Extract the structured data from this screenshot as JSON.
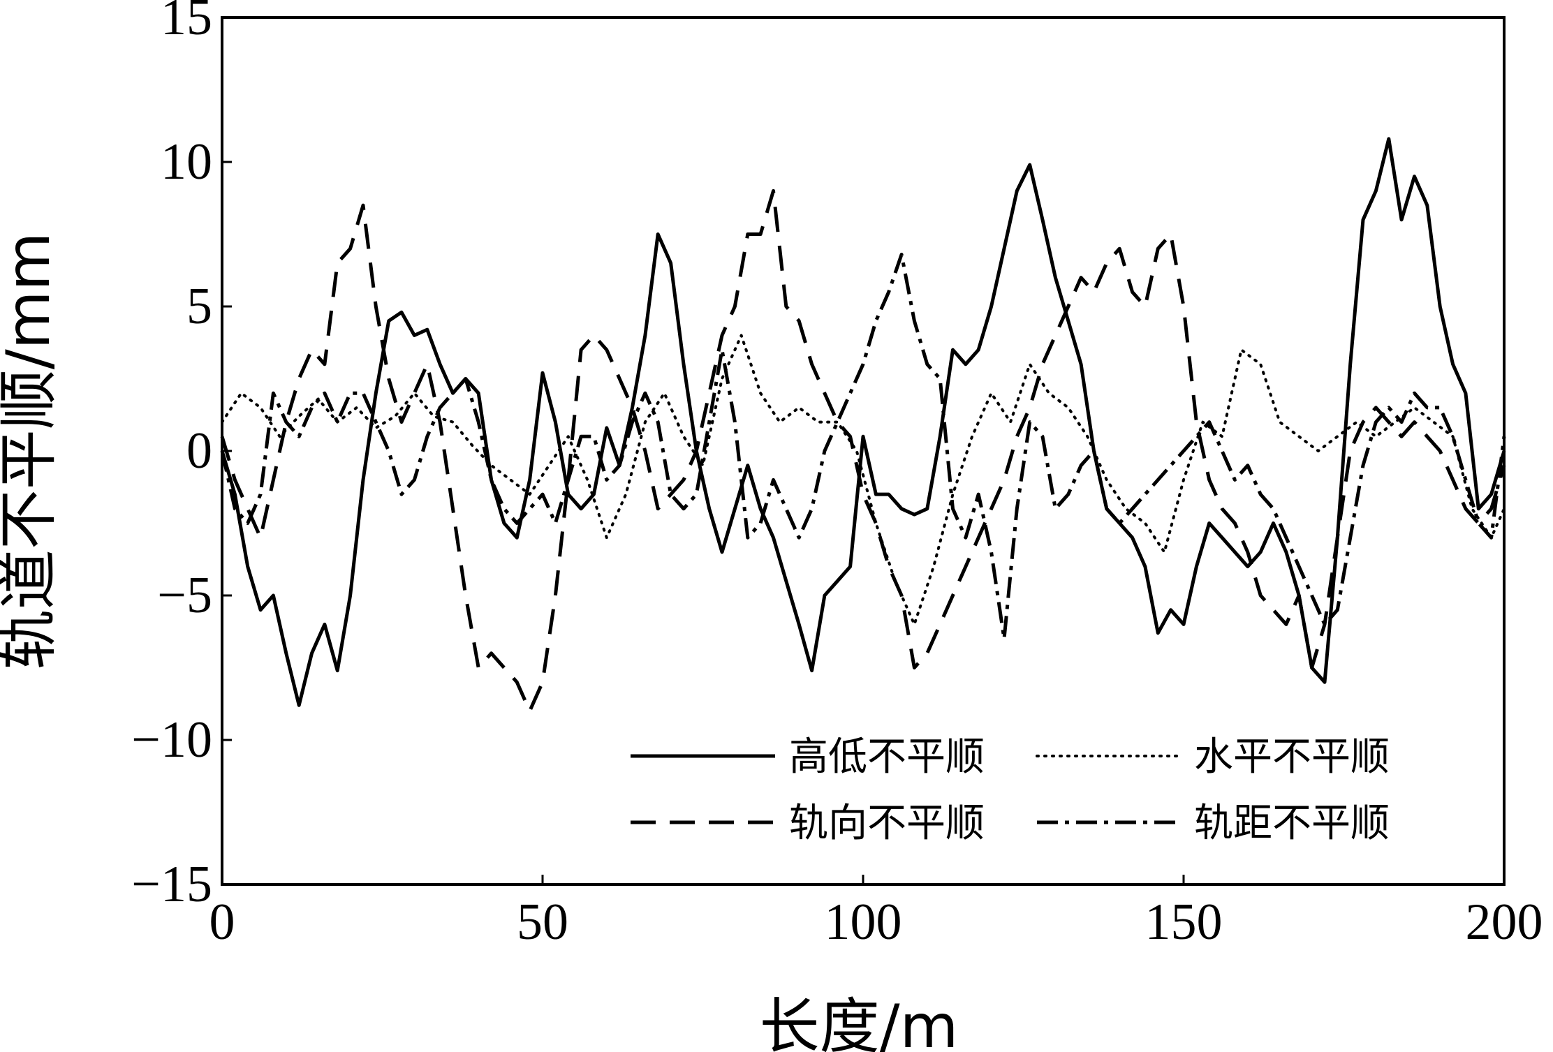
{
  "chart_data": {
    "type": "line",
    "title": "",
    "xlabel": "长度/m",
    "ylabel": "轨道不平顺/mm",
    "xlim": [
      0,
      200
    ],
    "ylim": [
      -15,
      15
    ],
    "xticks": [
      0,
      50,
      100,
      150,
      200
    ],
    "yticks": [
      -15,
      -10,
      -5,
      0,
      5,
      10,
      15
    ],
    "x_tick_labels": [
      "0",
      "50",
      "100",
      "150",
      "200"
    ],
    "y_tick_labels": [
      "−15",
      "−10",
      "−5",
      "0",
      "5",
      "10",
      "15"
    ],
    "grid": false,
    "legend_position": "bottom-right",
    "series": [
      {
        "name": "高低不平顺",
        "style": "solid",
        "x": [
          0,
          2,
          4,
          6,
          8,
          10,
          12,
          14,
          16,
          18,
          20,
          22,
          24,
          26,
          28,
          30,
          32,
          34,
          36,
          38,
          40,
          42,
          44,
          46,
          48,
          50,
          52,
          54,
          56,
          58,
          60,
          62,
          64,
          66,
          68,
          70,
          72,
          74,
          76,
          78,
          80,
          82,
          84,
          86,
          88,
          90,
          92,
          94,
          96,
          98,
          100,
          102,
          104,
          106,
          108,
          110,
          112,
          114,
          116,
          118,
          120,
          122,
          124,
          126,
          128,
          130,
          132,
          134,
          136,
          138,
          140,
          142,
          144,
          146,
          148,
          150,
          152,
          154,
          156,
          158,
          160,
          162,
          164,
          166,
          168,
          170,
          172,
          174,
          176,
          178,
          180,
          182,
          184,
          186,
          188,
          190,
          192,
          194,
          196,
          198,
          200
        ],
        "values": [
          0,
          -1.5,
          -4,
          -5.5,
          -5,
          -7,
          -8.8,
          -7,
          -6,
          -7.6,
          -5,
          -1,
          2,
          4.5,
          4.8,
          4,
          4.2,
          3,
          2,
          2.5,
          2,
          -1,
          -2.5,
          -3,
          -1,
          2.7,
          1,
          -1.5,
          -2,
          -1.5,
          0.8,
          -0.5,
          1.5,
          4,
          7.5,
          6.5,
          3,
          0,
          -2,
          -3.5,
          -2,
          -0.5,
          -2,
          -3,
          -4.5,
          -6,
          -7.6,
          -5,
          -4.5,
          -4,
          0.5,
          -1.5,
          -1.5,
          -2,
          -2.2,
          -2,
          0.5,
          3.5,
          3,
          3.5,
          5,
          7,
          9,
          9.9,
          8,
          6,
          4.5,
          3,
          0,
          -2,
          -2.5,
          -3,
          -4,
          -6.3,
          -5.5,
          -6,
          -4,
          -2.5,
          -3,
          -3.5,
          -4,
          -3.5,
          -2.5,
          -3.5,
          -5,
          -7.5,
          -8,
          -3,
          3,
          8,
          9,
          10.8,
          8,
          9.5,
          8.5,
          5,
          3,
          2,
          -2,
          -1.5,
          0
        ]
      },
      {
        "name": "水平不平顺",
        "style": "dotted",
        "x": [
          0,
          3,
          6,
          9,
          12,
          15,
          18,
          21,
          24,
          27,
          30,
          33,
          36,
          39,
          42,
          45,
          48,
          51,
          54,
          57,
          60,
          63,
          66,
          69,
          72,
          75,
          78,
          81,
          84,
          87,
          90,
          93,
          96,
          99,
          102,
          105,
          108,
          111,
          114,
          117,
          120,
          123,
          126,
          129,
          132,
          135,
          138,
          141,
          144,
          147,
          150,
          153,
          156,
          159,
          162,
          165,
          168,
          171,
          174,
          177,
          180,
          183,
          186,
          189,
          192,
          195,
          198,
          200
        ],
        "values": [
          1,
          2,
          1.5,
          0.5,
          1.2,
          1.8,
          1,
          1.5,
          0.8,
          1.2,
          2,
          1.2,
          1,
          0.2,
          -0.5,
          -1,
          -1.5,
          -0.5,
          0.5,
          -1,
          -3,
          -1.5,
          1,
          2,
          0.5,
          -0.5,
          2.5,
          4,
          2,
          1,
          1.5,
          1,
          1,
          0,
          -2.5,
          -4.5,
          -6,
          -4,
          -1.5,
          0.5,
          2,
          1,
          3,
          2,
          1.5,
          0.5,
          -1,
          -2,
          -2.5,
          -3.5,
          -1,
          1,
          0.5,
          3.5,
          3,
          1,
          0.5,
          0,
          0.5,
          1,
          0.5,
          1,
          1.5,
          1,
          0.5,
          -2,
          -3,
          -2
        ]
      },
      {
        "name": "轨向不平顺",
        "style": "dashed",
        "x": [
          0,
          2,
          4,
          6,
          8,
          10,
          12,
          14,
          16,
          18,
          20,
          22,
          24,
          26,
          28,
          30,
          32,
          34,
          36,
          38,
          40,
          42,
          44,
          46,
          48,
          50,
          52,
          54,
          56,
          58,
          60,
          62,
          64,
          66,
          68,
          70,
          72,
          74,
          76,
          78,
          80,
          82,
          84,
          86,
          88,
          90,
          92,
          94,
          96,
          98,
          100,
          102,
          104,
          106,
          108,
          110,
          112,
          114,
          116,
          118,
          120,
          122,
          124,
          126,
          128,
          130,
          132,
          134,
          136,
          138,
          140,
          142,
          144,
          146,
          148,
          150,
          152,
          154,
          156,
          158,
          160,
          162,
          164,
          166,
          168,
          170,
          172,
          174,
          176,
          178,
          180,
          182,
          184,
          186,
          188,
          190,
          192,
          194,
          196,
          198,
          200
        ],
        "values": [
          0.5,
          -1,
          -2,
          -3,
          -1,
          1,
          2.5,
          3.5,
          3,
          6.5,
          7,
          8.5,
          5,
          2.5,
          1,
          2,
          3,
          1,
          -2,
          -5,
          -7.5,
          -7,
          -7.5,
          -8,
          -9,
          -8,
          -5,
          -1,
          3.5,
          4,
          3.5,
          2.5,
          1.5,
          0,
          -2,
          -1.5,
          -1,
          0,
          2,
          4,
          5,
          7.5,
          7.5,
          9,
          5,
          4.5,
          3,
          2,
          1,
          0.5,
          -1.5,
          -2.5,
          -4,
          -5,
          -7.5,
          -7,
          -6,
          -5,
          -4,
          -3,
          -2,
          -1,
          0.5,
          1.5,
          3,
          4,
          5,
          6,
          5.5,
          6.5,
          7,
          5.5,
          5,
          7,
          7.5,
          5,
          1,
          -1,
          -2,
          -2.5,
          -3.5,
          -5,
          -5.5,
          -6,
          -5,
          -7.5,
          -6,
          -3,
          0,
          1,
          1.5,
          1,
          0.5,
          1,
          0.5,
          0,
          -1,
          -2,
          -2.5,
          -2,
          -0.5
        ]
      },
      {
        "name": "轨距不平顺",
        "style": "dashdot",
        "x": [
          0,
          2,
          4,
          6,
          8,
          10,
          12,
          14,
          16,
          18,
          20,
          22,
          24,
          26,
          28,
          30,
          32,
          34,
          36,
          38,
          40,
          42,
          44,
          46,
          48,
          50,
          52,
          54,
          56,
          58,
          60,
          62,
          64,
          66,
          68,
          70,
          72,
          74,
          76,
          78,
          80,
          82,
          84,
          86,
          88,
          90,
          92,
          94,
          96,
          98,
          100,
          102,
          104,
          106,
          108,
          110,
          112,
          114,
          116,
          118,
          120,
          122,
          124,
          126,
          128,
          130,
          132,
          134,
          136,
          138,
          140,
          142,
          144,
          146,
          148,
          150,
          152,
          154,
          156,
          158,
          160,
          162,
          164,
          166,
          168,
          170,
          172,
          174,
          176,
          178,
          180,
          182,
          184,
          186,
          188,
          190,
          192,
          194,
          196,
          198,
          200
        ],
        "values": [
          0,
          -2,
          -2.5,
          -1.5,
          2,
          1,
          0.5,
          1.5,
          2,
          1,
          2,
          2,
          1,
          0,
          -1.5,
          -1,
          0.5,
          1.5,
          2,
          2.5,
          1,
          -1,
          -2,
          -2.5,
          -2,
          -1.5,
          -2.5,
          -1,
          0.5,
          0.5,
          -1,
          -0.5,
          1,
          2,
          1,
          -1.5,
          -2,
          -1.5,
          1,
          3.5,
          1,
          -3,
          -2.5,
          -1,
          -2,
          -3,
          -2,
          0,
          1,
          2,
          3,
          4.5,
          5.5,
          6.8,
          4.5,
          3,
          2.5,
          -2,
          -3,
          -1.5,
          -3.5,
          -6.5,
          -2,
          1,
          0.5,
          -2,
          -1.5,
          -0.5,
          0,
          -2,
          -2.5,
          -2,
          -1.5,
          -1,
          -0.5,
          0,
          0.5,
          1,
          0,
          -1,
          -0.5,
          -1.5,
          -2,
          -3,
          -4,
          -5,
          -6,
          -5.5,
          -3,
          -0.5,
          1,
          1.5,
          1,
          2,
          1.5,
          1.5,
          0.5,
          -1,
          -2.5,
          -3,
          0.5
        ]
      }
    ],
    "legend": {
      "entries": [
        "高低不平顺",
        "水平不平顺",
        "轨向不平顺",
        "轨距不平顺"
      ]
    }
  }
}
